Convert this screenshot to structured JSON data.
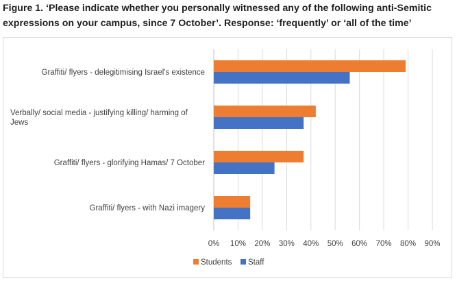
{
  "figure_title_line1": "Figure 1. ‘Please indicate whether you personally witnessed any of the following anti-Semitic",
  "figure_title_line2": "expressions on your campus, since 7 October’. Response: ‘frequently’ or ‘all of the time’",
  "chart_data": {
    "type": "bar",
    "orientation": "horizontal",
    "categories": [
      [
        "Graffiti/ flyers - delegitimising Israel's existence"
      ],
      [
        "Verbally/ social media - justifying killing/ harming of",
        "Jews"
      ],
      [
        "Graffiti/ flyers - glorifying Hamas/ 7 October"
      ],
      [
        "Graffiti/ flyers - with Nazi imagery"
      ]
    ],
    "series": [
      {
        "name": "Students",
        "color": "#ed7d31",
        "values": [
          79,
          42,
          37,
          15
        ]
      },
      {
        "name": "Staff",
        "color": "#4472c4",
        "values": [
          56,
          37,
          25,
          15
        ]
      }
    ],
    "xlim": [
      0,
      90
    ],
    "ticks": [
      "0%",
      "10%",
      "20%",
      "30%",
      "40%",
      "50%",
      "60%",
      "70%",
      "80%",
      "90%"
    ],
    "grid": true,
    "legend_position": "bottom"
  }
}
